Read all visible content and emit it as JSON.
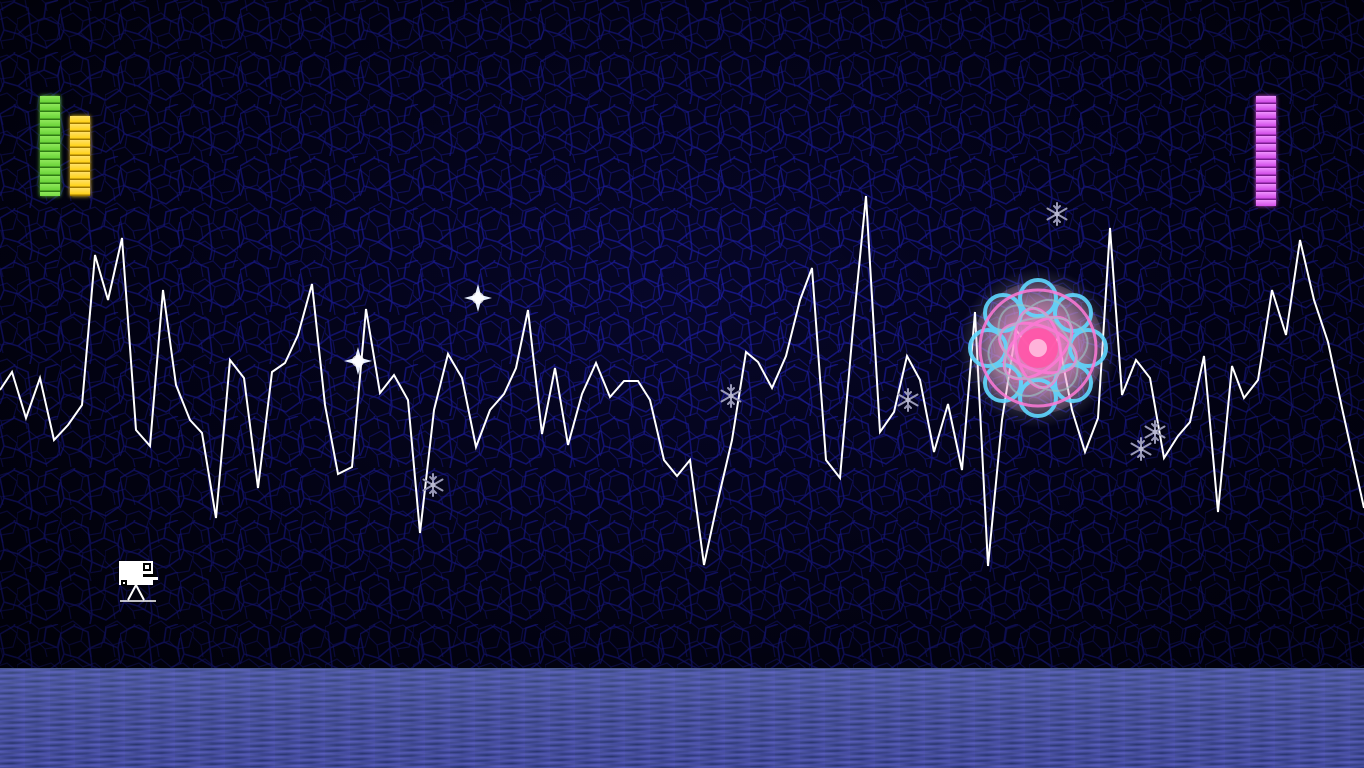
{
  "hud": {
    "energy": {
      "level": 1.0,
      "color": "#6cd43a"
    },
    "power": {
      "level": 0.8,
      "color": "#ffd21a"
    },
    "enemy_health": {
      "level": 1.0,
      "color": "#d24ee8"
    }
  },
  "scene": {
    "background_color": "#03031a",
    "cell_line_color": "#1a1aa0",
    "waveform_color": "#ffffff",
    "floor_color": "#2c3a6a"
  },
  "entities": {
    "player": {
      "icon": "robot-camera-icon"
    },
    "boss": {
      "icon": "rainbow-orb-icon",
      "core_color": "#ff66b3",
      "ring_color": "#5fd8ff"
    },
    "sparkles": {
      "icon": "sparkle-icon",
      "count": 2
    },
    "snowflakes": {
      "icon": "snowflake-icon",
      "count": 6
    }
  }
}
